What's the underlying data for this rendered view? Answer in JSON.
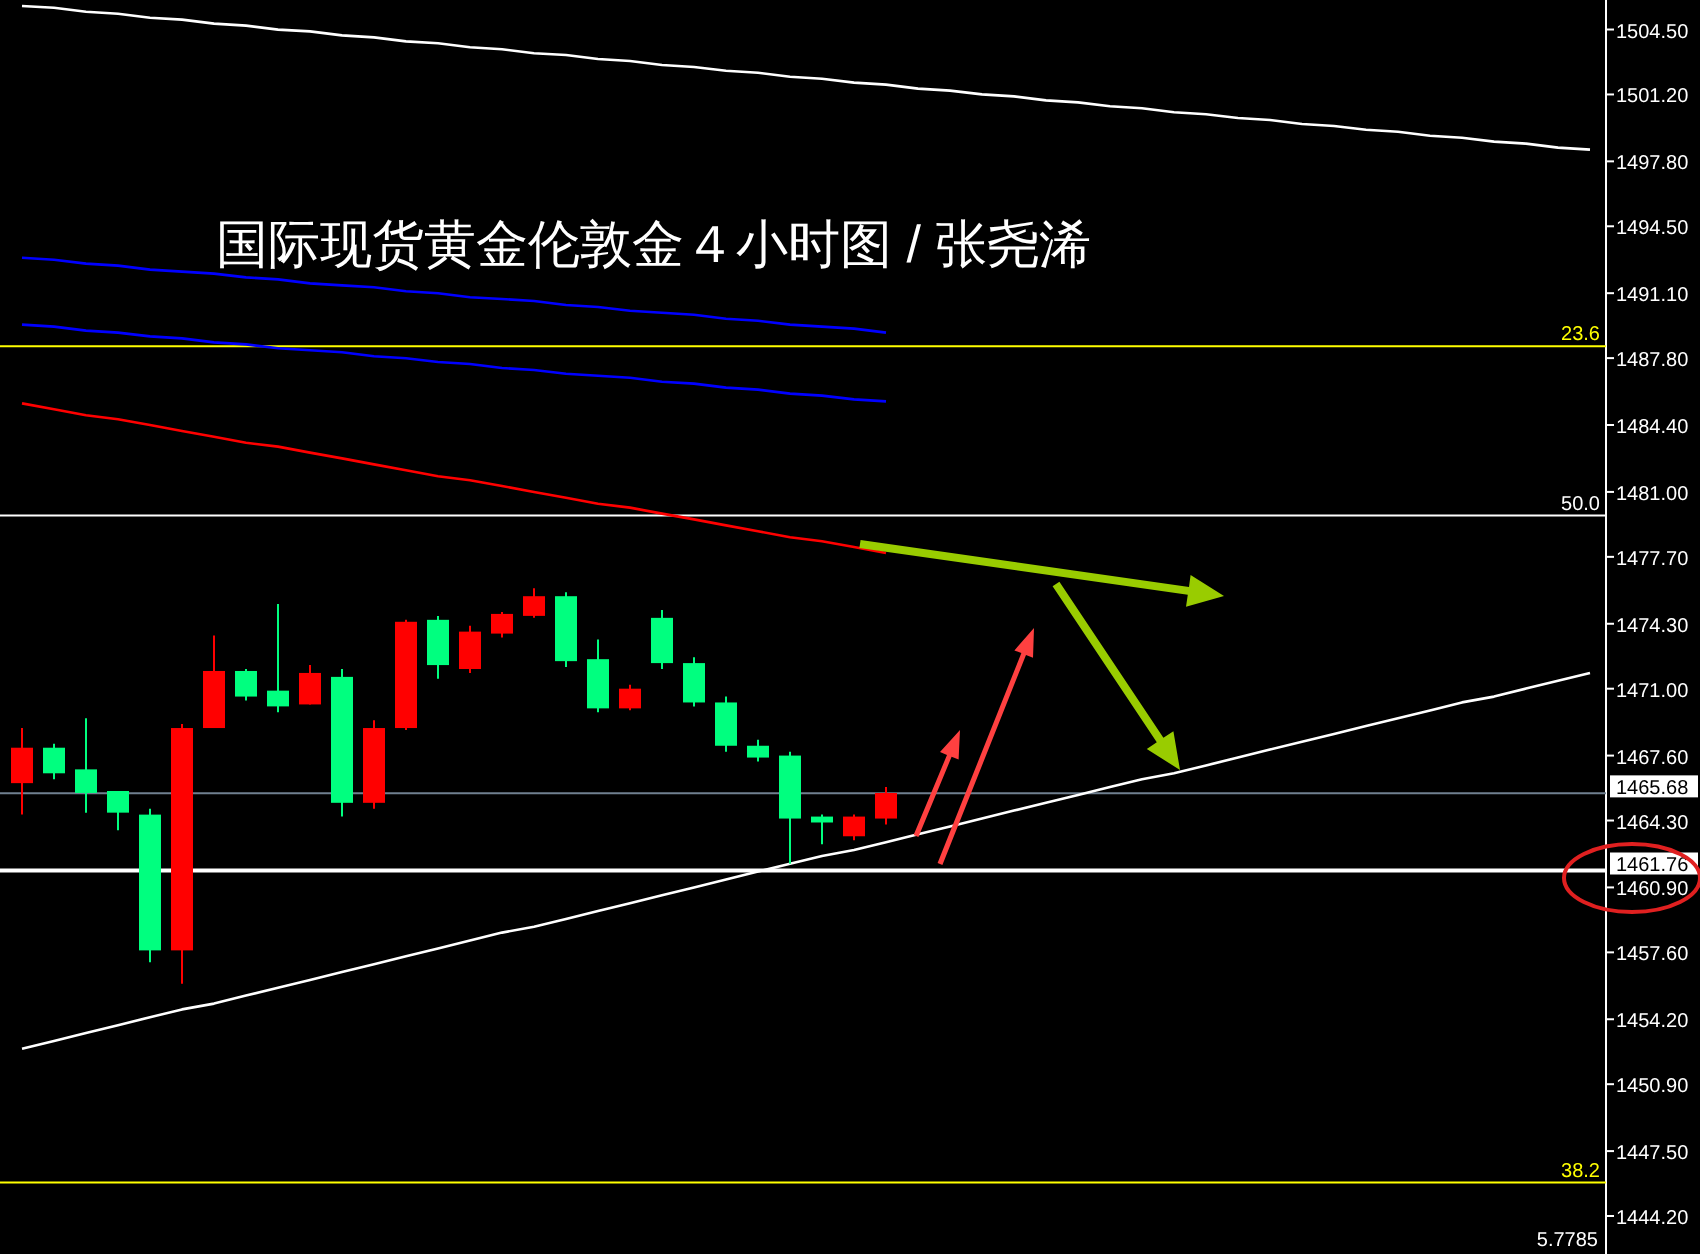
{
  "chart_data": {
    "type": "candlestick",
    "title": "国际现货黄金伦敦金４小时图 / 张尧浠",
    "categories": [
      null,
      null,
      null,
      null,
      null,
      null,
      null,
      null,
      null,
      null,
      null,
      null,
      null,
      null,
      null,
      null,
      null,
      null,
      null,
      null,
      null,
      null,
      null,
      null,
      null,
      null,
      null,
      null,
      null,
      null,
      null,
      null,
      null,
      null,
      null,
      null,
      null,
      null,
      null,
      null,
      null,
      null,
      null,
      null,
      null,
      null,
      null,
      null,
      null,
      null
    ],
    "ohlc": [
      [
        1466.2,
        1469.0,
        1464.6,
        1468.0
      ],
      [
        1468.0,
        1468.2,
        1466.4,
        1466.7
      ],
      [
        1466.9,
        1469.5,
        1464.7,
        1465.7
      ],
      [
        1465.8,
        1465.8,
        1463.8,
        1464.7
      ],
      [
        1464.6,
        1464.9,
        1457.1,
        1457.7
      ],
      [
        1457.7,
        1469.2,
        1456.0,
        1469.0
      ],
      [
        1469.0,
        1473.7,
        1469.0,
        1471.9
      ],
      [
        1471.9,
        1472.0,
        1470.4,
        1470.6
      ],
      [
        1470.9,
        1475.3,
        1469.8,
        1470.1
      ],
      [
        1470.2,
        1472.2,
        1470.2,
        1471.8
      ],
      [
        1471.6,
        1472.0,
        1464.5,
        1465.2
      ],
      [
        1465.2,
        1469.4,
        1464.9,
        1469.0
      ],
      [
        1469.0,
        1474.5,
        1468.9,
        1474.4
      ],
      [
        1474.5,
        1474.7,
        1471.5,
        1472.2
      ],
      [
        1472.0,
        1474.2,
        1471.8,
        1473.9
      ],
      [
        1473.8,
        1474.9,
        1473.6,
        1474.8
      ],
      [
        1474.7,
        1476.1,
        1474.6,
        1475.7
      ],
      [
        1475.7,
        1475.9,
        1472.1,
        1472.4
      ],
      [
        1472.5,
        1473.5,
        1469.8,
        1470.0
      ],
      [
        1470.0,
        1471.2,
        1469.9,
        1471.0
      ],
      [
        1474.6,
        1475.0,
        1472.0,
        1472.3
      ],
      [
        1472.3,
        1472.6,
        1470.1,
        1470.3
      ],
      [
        1470.3,
        1470.6,
        1467.8,
        1468.1
      ],
      [
        1468.1,
        1468.4,
        1467.3,
        1467.5
      ],
      [
        1467.6,
        1467.8,
        1462.1,
        1464.4
      ],
      [
        1464.5,
        1464.6,
        1463.1,
        1464.2
      ],
      [
        1463.5,
        1464.6,
        1463.3,
        1464.5
      ],
      [
        1464.4,
        1466.0,
        1464.1,
        1465.7
      ],
      null,
      null,
      null,
      null,
      null,
      null,
      null,
      null,
      null,
      null,
      null,
      null,
      null,
      null,
      null,
      null,
      null,
      null,
      null,
      null,
      null,
      null
    ],
    "colors": [
      "#ff0000",
      "#00ff7f",
      "#00ff7f",
      "#00ff7f",
      "#00ff7f",
      "#ff0000",
      "#ff0000",
      "#00ff7f",
      "#00ff7f",
      "#ff0000",
      "#00ff7f",
      "#ff0000",
      "#ff0000",
      "#00ff7f",
      "#ff0000",
      "#ff0000",
      "#ff0000",
      "#00ff7f",
      "#00ff7f",
      "#ff0000",
      "#00ff7f",
      "#00ff7f",
      "#00ff7f",
      "#00ff7f",
      "#00ff7f",
      "#00ff7f",
      "#ff0000",
      "#ff0000",
      null,
      null,
      null,
      null,
      null,
      null,
      null,
      null,
      null,
      null,
      null,
      null,
      null,
      null,
      null,
      null,
      null,
      null,
      null,
      null,
      null,
      null
    ],
    "series": [
      {
        "type": "line",
        "color": "#ffffff",
        "values": [
          1505.7,
          1505.6,
          1505.4,
          1505.3,
          1505.1,
          1505.0,
          1504.8,
          1504.7,
          1504.5,
          1504.4,
          1504.2,
          1504.1,
          1503.9,
          1503.8,
          1503.6,
          1503.5,
          1503.3,
          1503.2,
          1503.0,
          1502.9,
          1502.7,
          1502.6,
          1502.4,
          1502.3,
          1502.1,
          1502.0,
          1501.8,
          1501.7,
          1501.5,
          1501.4,
          1501.2,
          1501.1,
          1500.9,
          1500.8,
          1500.6,
          1500.5,
          1500.3,
          1500.2,
          1500.0,
          1499.9,
          1499.7,
          1499.6,
          1499.4,
          1499.3,
          1499.1,
          1499.0,
          1498.8,
          1498.7,
          1498.5,
          1498.4
        ]
      },
      {
        "type": "line",
        "color": "#ffffff",
        "values": [
          1452.7,
          1453.1,
          1453.5,
          1453.9,
          1454.3,
          1454.7,
          1455.0,
          1455.4,
          1455.8,
          1456.2,
          1456.6,
          1457.0,
          1457.4,
          1457.8,
          1458.2,
          1458.6,
          1458.9,
          1459.3,
          1459.7,
          1460.1,
          1460.5,
          1460.9,
          1461.3,
          1461.7,
          1462.1,
          1462.5,
          1462.8,
          1463.2,
          1463.6,
          1464.0,
          1464.4,
          1464.8,
          1465.2,
          1465.6,
          1466.0,
          1466.4,
          1466.7,
          1467.1,
          1467.5,
          1467.9,
          1468.3,
          1468.7,
          1469.1,
          1469.5,
          1469.9,
          1470.3,
          1470.6,
          1471.0,
          1471.4,
          1471.8
        ]
      },
      {
        "type": "line",
        "color": "#0000ff",
        "values": [
          1492.9,
          1492.8,
          1492.6,
          1492.5,
          1492.3,
          1492.2,
          1492.1,
          1491.9,
          1491.8,
          1491.6,
          1491.5,
          1491.4,
          1491.2,
          1491.1,
          1490.9,
          1490.8,
          1490.7,
          1490.5,
          1490.4,
          1490.2,
          1490.1,
          1490.0,
          1489.8,
          1489.7,
          1489.5,
          1489.4,
          1489.3,
          1489.1,
          null,
          null,
          null,
          null,
          null,
          null,
          null,
          null,
          null,
          null,
          null,
          null,
          null,
          null,
          null,
          null,
          null,
          null,
          null,
          null,
          null,
          null
        ]
      },
      {
        "type": "line",
        "color": "#0000ff",
        "values": [
          1489.5,
          1489.4,
          1489.2,
          1489.1,
          1488.9,
          1488.8,
          1488.6,
          1488.5,
          1488.3,
          1488.2,
          1488.1,
          1487.9,
          1487.8,
          1487.6,
          1487.5,
          1487.3,
          1487.2,
          1487.0,
          1486.9,
          1486.8,
          1486.6,
          1486.5,
          1486.3,
          1486.2,
          1486.0,
          1485.9,
          1485.7,
          1485.6,
          null,
          null,
          null,
          null,
          null,
          null,
          null,
          null,
          null,
          null,
          null,
          null,
          null,
          null,
          null,
          null,
          null,
          null,
          null,
          null,
          null,
          null
        ]
      },
      {
        "type": "line",
        "color": "#ff0000",
        "values": [
          1485.5,
          1485.2,
          1484.9,
          1484.7,
          1484.4,
          1484.1,
          1483.8,
          1483.5,
          1483.3,
          1483.0,
          1482.7,
          1482.4,
          1482.1,
          1481.8,
          1481.6,
          1481.3,
          1481.0,
          1480.7,
          1480.4,
          1480.2,
          1479.9,
          1479.6,
          1479.3,
          1479.0,
          1478.7,
          1478.5,
          1478.2,
          1477.9,
          null,
          null,
          null,
          null,
          null,
          null,
          null,
          null,
          null,
          null,
          null,
          null,
          null,
          null,
          null,
          null,
          null,
          null,
          null,
          null,
          null,
          null
        ]
      }
    ],
    "ylim": [
      1442.27,
      1506.0
    ],
    "yticks": [
      {
        "value": 1444.2,
        "label": "1444.20"
      },
      {
        "value": 1447.5,
        "label": "1447.50"
      },
      {
        "value": 1450.9,
        "label": "1450.90"
      },
      {
        "value": 1454.2,
        "label": "1454.20"
      },
      {
        "value": 1457.6,
        "label": "1457.60"
      },
      {
        "value": 1460.9,
        "label": "1460.90"
      },
      {
        "value": 1464.3,
        "label": "1464.30"
      },
      {
        "value": 1467.6,
        "label": "1467.60"
      },
      {
        "value": 1471.0,
        "label": "1471.00"
      },
      {
        "value": 1474.3,
        "label": "1474.30"
      },
      {
        "value": 1477.7,
        "label": "1477.70"
      },
      {
        "value": 1481.0,
        "label": "1481.00"
      },
      {
        "value": 1484.4,
        "label": "1484.40"
      },
      {
        "value": 1487.8,
        "label": "1487.80"
      },
      {
        "value": 1491.1,
        "label": "1491.10"
      },
      {
        "value": 1494.5,
        "label": "1494.50"
      },
      {
        "value": 1497.8,
        "label": "1497.80"
      },
      {
        "value": 1501.2,
        "label": "1501.20"
      },
      {
        "value": 1504.5,
        "label": "1504.50"
      }
    ],
    "ref_lines": [
      {
        "axis": "y",
        "value": 1488.4,
        "color": "#ffff00"
      },
      {
        "axis": "y",
        "value": 1479.8,
        "color": "#ffffff"
      },
      {
        "axis": "y",
        "value": 1445.9,
        "color": "#ffff00"
      },
      {
        "axis": "y",
        "value": 1465.68,
        "label": "1465.68",
        "color": "#708090"
      },
      {
        "axis": "y",
        "value": 1461.76,
        "label": "1461.76",
        "color": "#ffffff"
      }
    ],
    "annotations": [
      {
        "text": "23.6",
        "y": 1488.4
      },
      {
        "text": "50.0",
        "y": 1479.8
      },
      {
        "text": "38.2",
        "y": 1445.9
      },
      "5.7785"
    ],
    "grid": false
  }
}
